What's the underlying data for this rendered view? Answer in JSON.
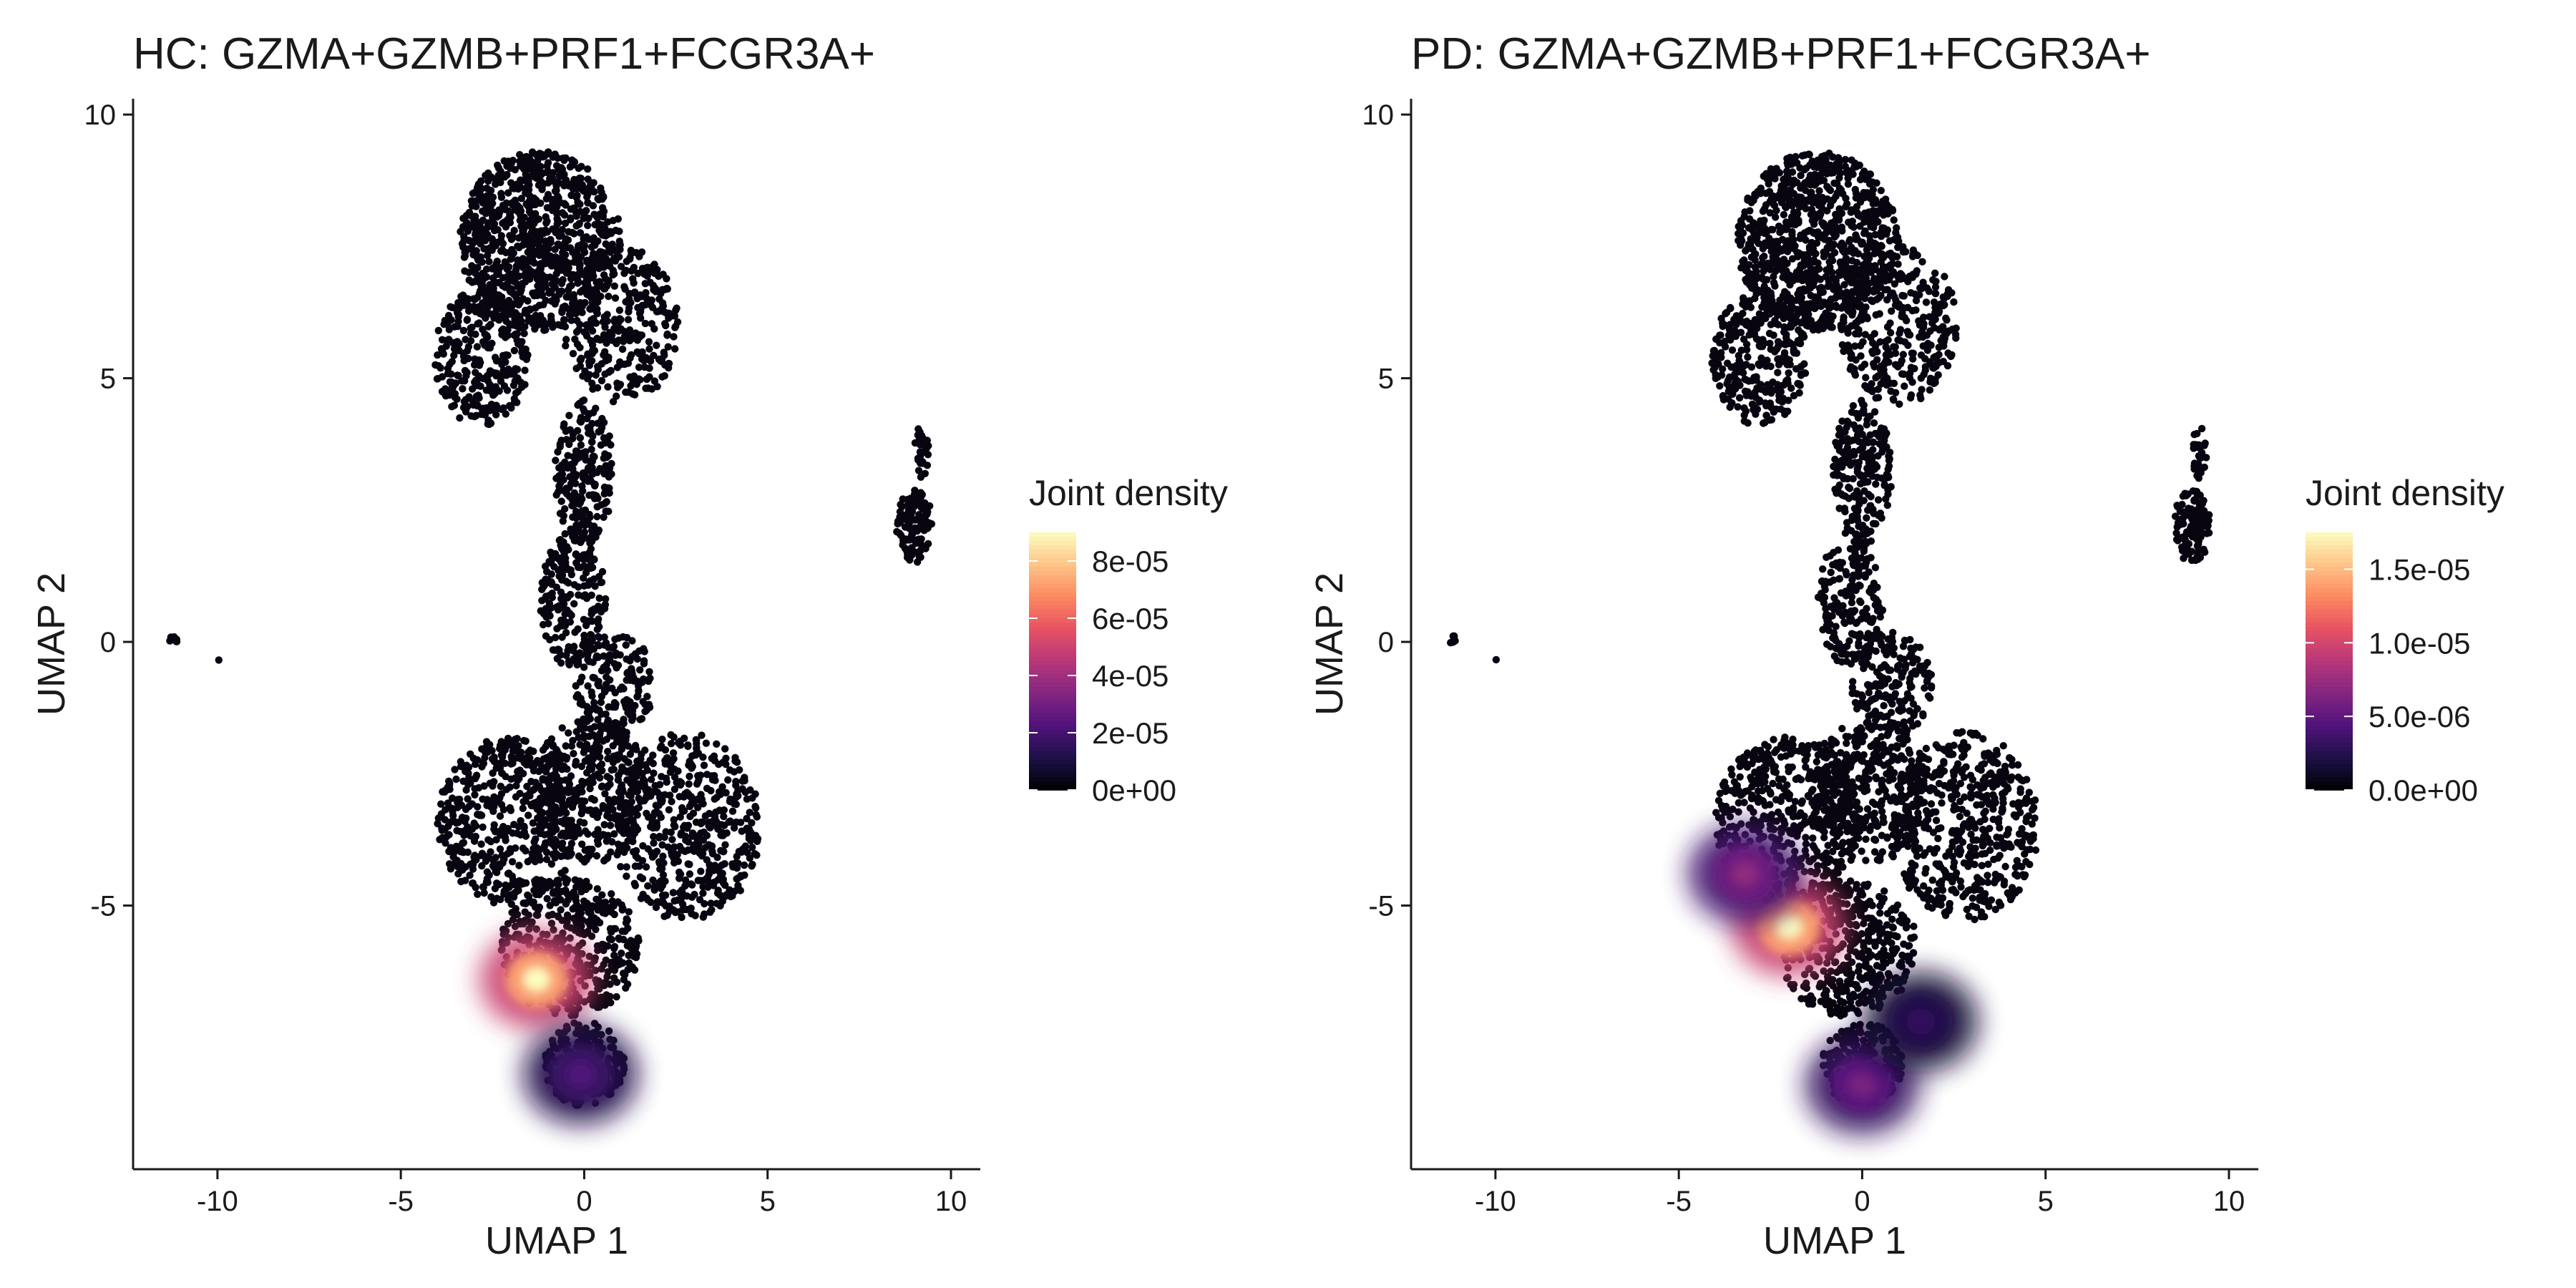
{
  "chart_data": [
    {
      "type": "scatter",
      "title": "HC: GZMA+GZMB+PRF1+FCGR3A+",
      "xlabel": "UMAP 1",
      "ylabel": "UMAP 2",
      "xlim": [
        -12.3,
        10.8
      ],
      "ylim": [
        -10.0,
        10.3
      ],
      "x_ticks": [
        -10,
        -5,
        0,
        5,
        10
      ],
      "y_ticks": [
        -5,
        0,
        5,
        10
      ],
      "x_tick_labels": [
        "-10",
        "-5",
        "0",
        "5",
        "10"
      ],
      "y_tick_labels": [
        "-5",
        "0",
        "5",
        "10"
      ],
      "grid": false,
      "legend": {
        "title": "Joint density",
        "placement": "right",
        "min": 0,
        "max": 9e-05,
        "breaks": [
          0,
          2e-05,
          4e-05,
          6e-05,
          8e-05
        ],
        "labels": [
          "0e+00",
          "2e-05",
          "4e-05",
          "6e-05",
          "8e-05"
        ],
        "colormap": [
          "#000004",
          "#1d1147",
          "#51127c",
          "#832681",
          "#b73779",
          "#e75263",
          "#fc8961",
          "#fec488",
          "#fcfdbf"
        ]
      },
      "hotspots": [
        {
          "x": -1.3,
          "y": -6.4,
          "density": 9e-05
        },
        {
          "x": -0.1,
          "y": -8.2,
          "density": 2.2e-05
        }
      ]
    },
    {
      "type": "scatter",
      "title": "PD: GZMA+GZMB+PRF1+FCGR3A+",
      "xlabel": "UMAP 1",
      "ylabel": "UMAP 2",
      "xlim": [
        -12.3,
        10.8
      ],
      "ylim": [
        -10.0,
        10.3
      ],
      "x_ticks": [
        -10,
        -5,
        0,
        5,
        10
      ],
      "y_ticks": [
        -5,
        0,
        5,
        10
      ],
      "x_tick_labels": [
        "-10",
        "-5",
        "0",
        "5",
        "10"
      ],
      "y_tick_labels": [
        "-5",
        "0",
        "5",
        "10"
      ],
      "grid": false,
      "legend": {
        "title": "Joint density",
        "placement": "right",
        "min": 0,
        "max": 1.75e-05,
        "breaks": [
          0,
          5e-06,
          1e-05,
          1.5e-05
        ],
        "labels": [
          "0.0e+00",
          "5.0e-06",
          "1.0e-05",
          "1.5e-05"
        ],
        "colormap": [
          "#000004",
          "#1d1147",
          "#51127c",
          "#832681",
          "#b73779",
          "#e75263",
          "#fc8961",
          "#fec488",
          "#fcfdbf"
        ]
      },
      "hotspots": [
        {
          "x": -2.0,
          "y": -5.4,
          "density": 1.75e-05
        },
        {
          "x": -3.2,
          "y": -4.4,
          "density": 7e-06
        },
        {
          "x": 0.0,
          "y": -8.4,
          "density": 6e-06
        },
        {
          "x": 1.6,
          "y": -7.2,
          "density": 3e-06
        }
      ]
    }
  ]
}
